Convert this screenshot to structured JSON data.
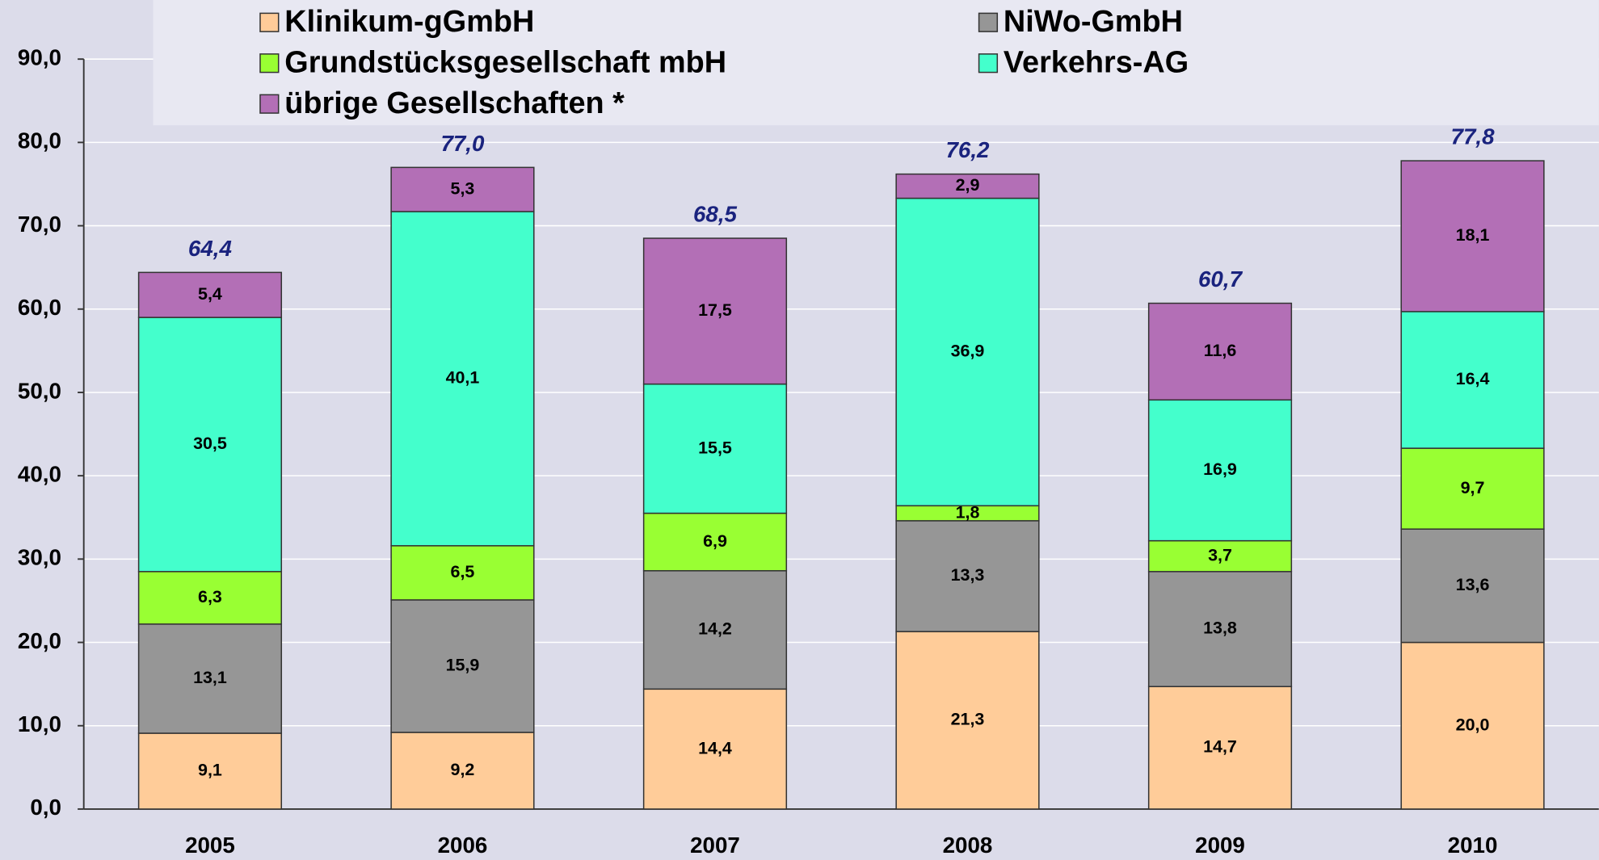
{
  "chart_data": {
    "type": "stacked_bar",
    "categories": [
      "2005",
      "2006",
      "2007",
      "2008",
      "2009",
      "2010"
    ],
    "series": [
      {
        "name": "Klinikum-gGmbH",
        "color": "#ffcc99",
        "values": [
          9.1,
          9.2,
          14.4,
          21.3,
          14.7,
          20.0
        ],
        "value_labels": [
          "9,1",
          "9,2",
          "14,4",
          "21,3",
          "14,7",
          "20,0"
        ]
      },
      {
        "name": "NiWo-GmbH",
        "color": "#969696",
        "values": [
          13.1,
          15.9,
          14.2,
          13.3,
          13.8,
          13.6
        ],
        "value_labels": [
          "13,1",
          "15,9",
          "14,2",
          "13,3",
          "13,8",
          "13,6"
        ]
      },
      {
        "name": "Grundstücksgesellschaft mbH",
        "color": "#99ff33",
        "values": [
          6.3,
          6.5,
          6.9,
          1.8,
          3.7,
          9.7
        ],
        "value_labels": [
          "6,3",
          "6,5",
          "6,9",
          "1,8",
          "3,7",
          "9,7"
        ]
      },
      {
        "name": "Verkehrs-AG",
        "color": "#44ffcc",
        "values": [
          30.5,
          40.1,
          15.5,
          36.9,
          16.9,
          16.4
        ],
        "value_labels": [
          "30,5",
          "40,1",
          "15,5",
          "36,9",
          "16,9",
          "16,4"
        ]
      },
      {
        "name": "übrige Gesellschaften *",
        "color": "#b36fb6",
        "values": [
          5.4,
          5.3,
          17.5,
          2.9,
          11.6,
          18.1
        ],
        "value_labels": [
          "5,4",
          "5,3",
          "17,5",
          "2,9",
          "11,6",
          "18,1"
        ]
      }
    ],
    "totals": [
      64.4,
      77.0,
      68.5,
      76.2,
      60.7,
      77.8
    ],
    "total_labels": [
      "64,4",
      "77,0",
      "68,5",
      "76,2",
      "60,7",
      "77,8"
    ],
    "ylim": [
      0,
      90
    ],
    "yticks": [
      {
        "value": 0,
        "label": "0,0"
      },
      {
        "value": 10,
        "label": "10,0"
      },
      {
        "value": 20,
        "label": "20,0"
      },
      {
        "value": 30,
        "label": "30,0"
      },
      {
        "value": 40,
        "label": "40,0"
      },
      {
        "value": 50,
        "label": "50,0"
      },
      {
        "value": 60,
        "label": "60,0"
      },
      {
        "value": 70,
        "label": "70,0"
      },
      {
        "value": 80,
        "label": "80,0"
      },
      {
        "value": 90,
        "label": "90,0"
      }
    ],
    "grid": true,
    "legend": "top"
  }
}
